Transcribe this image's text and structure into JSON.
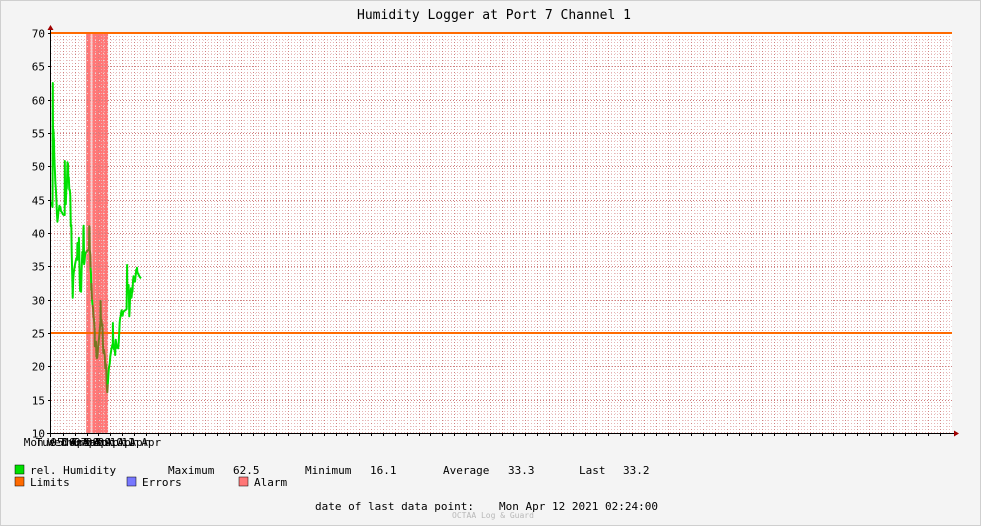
{
  "chart_data": {
    "type": "line",
    "title": "Humidity Logger at Port 7 Channel 1",
    "ylim": [
      10,
      70
    ],
    "y_ticks": [
      10,
      15,
      20,
      25,
      30,
      35,
      40,
      45,
      50,
      55,
      60,
      65,
      70
    ],
    "x_tick_labels": [
      "Mon 05 Apr",
      "Tue 06 Apr",
      "Wed 07 Apr",
      "Thu 08 Apr",
      "Fri 09 Apr",
      "Sat 10 Apr",
      "Sun 11 Apr"
    ],
    "x_range_hours": [
      0,
      170.4
    ],
    "grid": true,
    "limits": {
      "upper": 70,
      "lower": 25,
      "color": "#ff6a00"
    },
    "alarm_periods_hours": [
      [
        71.2,
        80.5
      ],
      [
        82.2,
        83.4
      ],
      [
        84.7,
        105.3
      ],
      [
        105.5,
        115.5
      ]
    ],
    "series": [
      {
        "name": "rel. Humidity",
        "color": "#00e000",
        "alarm_color": "#777722",
        "points": [
          [
            0,
            44.7
          ],
          [
            2.5,
            44.1
          ],
          [
            3.1,
            43.9
          ],
          [
            3.2,
            46
          ],
          [
            3.3,
            54
          ],
          [
            3.4,
            60
          ],
          [
            3.6,
            62.5
          ],
          [
            3.8,
            58
          ],
          [
            4,
            55.7
          ],
          [
            5,
            55.3
          ],
          [
            5.5,
            54.5
          ],
          [
            6,
            53.8
          ],
          [
            6.5,
            52
          ],
          [
            7.2,
            50.2
          ],
          [
            8,
            49
          ],
          [
            9,
            47.5
          ],
          [
            10,
            46.5
          ],
          [
            11,
            45
          ],
          [
            12,
            43
          ],
          [
            13,
            41.7
          ],
          [
            14,
            42.3
          ],
          [
            15,
            43.2
          ],
          [
            16,
            43.5
          ],
          [
            17,
            44.1
          ],
          [
            18,
            43.5
          ],
          [
            19,
            43.9
          ],
          [
            20,
            43.3
          ],
          [
            22,
            43.1
          ],
          [
            24,
            42.8
          ],
          [
            26,
            42.7
          ],
          [
            27.7,
            42.7
          ],
          [
            27.8,
            46
          ],
          [
            28,
            50.8
          ],
          [
            28.3,
            47.5
          ],
          [
            29,
            44.8
          ],
          [
            30,
            44.3
          ],
          [
            31,
            46.5
          ],
          [
            32,
            46.7
          ],
          [
            33,
            49.5
          ],
          [
            33.5,
            50.6
          ],
          [
            34,
            50.2
          ],
          [
            34.5,
            50.4
          ],
          [
            35,
            48.5
          ],
          [
            36,
            48.3
          ],
          [
            37,
            46.5
          ],
          [
            38,
            46.5
          ],
          [
            39,
            45.5
          ],
          [
            40,
            41
          ],
          [
            41,
            41.2
          ],
          [
            42,
            37
          ],
          [
            43,
            34
          ],
          [
            43.5,
            32
          ],
          [
            44,
            30.3
          ],
          [
            45,
            33
          ],
          [
            46,
            34
          ],
          [
            48,
            35
          ],
          [
            50,
            35.8
          ],
          [
            52,
            36.3
          ],
          [
            53,
            36.5
          ],
          [
            53.5,
            38.5
          ],
          [
            54,
            36
          ],
          [
            55,
            36.4
          ],
          [
            56,
            37.2
          ],
          [
            56.5,
            39.3
          ],
          [
            57,
            37.5
          ],
          [
            58,
            33
          ],
          [
            59,
            31.3
          ],
          [
            60,
            31.4
          ],
          [
            61,
            31.2
          ],
          [
            62,
            34.5
          ],
          [
            63,
            36.3
          ],
          [
            63.5,
            37.2
          ],
          [
            64,
            35.6
          ],
          [
            65,
            36.3
          ],
          [
            65.5,
            40.5
          ],
          [
            66,
            41.1
          ],
          [
            66.5,
            38
          ],
          [
            67,
            35.3
          ],
          [
            68,
            35.8
          ],
          [
            69,
            36.8
          ],
          [
            71,
            37.2
          ],
          [
            73,
            37.3
          ],
          [
            75,
            37.4
          ],
          [
            76,
            37.5
          ],
          [
            77,
            37.5
          ],
          [
            77.5,
            41
          ],
          [
            78,
            40.9
          ],
          [
            78.5,
            37.5
          ],
          [
            79.5,
            36.7
          ],
          [
            80,
            34.8
          ],
          [
            81,
            33.8
          ],
          [
            81.5,
            31.5
          ],
          [
            82,
            32.5
          ],
          [
            83,
            30
          ],
          [
            84,
            29.2
          ],
          [
            85,
            28.8
          ],
          [
            86,
            27.5
          ],
          [
            87,
            27
          ],
          [
            88,
            25.9
          ],
          [
            88.5,
            25.3
          ],
          [
            88.6,
            23
          ],
          [
            89,
            23.7
          ],
          [
            90,
            23.5
          ],
          [
            91,
            23.7
          ],
          [
            92,
            21.5
          ],
          [
            93,
            21.2
          ],
          [
            94,
            21.5
          ],
          [
            95,
            22.5
          ],
          [
            97,
            24
          ],
          [
            99,
            25.7
          ],
          [
            100,
            26.6
          ],
          [
            100.5,
            29.8
          ],
          [
            101,
            26.5
          ],
          [
            102,
            27
          ],
          [
            103,
            26.1
          ],
          [
            104,
            26.3
          ],
          [
            105,
            23.4
          ],
          [
            106,
            22
          ],
          [
            107,
            22.5
          ],
          [
            108,
            22
          ],
          [
            109,
            21.5
          ],
          [
            110,
            19.7
          ],
          [
            111,
            20.3
          ],
          [
            112,
            19.5
          ],
          [
            113,
            17
          ],
          [
            114,
            16.1
          ],
          [
            115,
            17.3
          ],
          [
            116,
            18.5
          ],
          [
            117,
            19.6
          ],
          [
            119,
            20.5
          ],
          [
            120,
            21.5
          ],
          [
            122,
            22.5
          ],
          [
            124,
            23.2
          ],
          [
            125,
            23.4
          ],
          [
            125.3,
            26.5
          ],
          [
            126,
            24
          ],
          [
            127,
            22.7
          ],
          [
            128,
            22.5
          ],
          [
            129,
            22.6
          ],
          [
            130,
            21.7
          ],
          [
            131,
            24
          ],
          [
            132,
            23.5
          ],
          [
            133,
            22.8
          ],
          [
            134,
            23.1
          ],
          [
            135,
            22.9
          ],
          [
            136,
            22.7
          ],
          [
            137,
            23.6
          ],
          [
            138,
            25
          ],
          [
            139,
            26.6
          ],
          [
            140,
            27.3
          ],
          [
            141,
            27.5
          ],
          [
            142,
            28
          ],
          [
            143,
            28.4
          ],
          [
            144,
            28
          ],
          [
            145,
            27.6
          ],
          [
            146,
            28.1
          ],
          [
            148,
            28.3
          ],
          [
            150,
            28.4
          ],
          [
            152,
            28.5
          ],
          [
            153,
            28.6
          ],
          [
            153.5,
            31
          ],
          [
            154,
            35.2
          ],
          [
            154.5,
            32
          ],
          [
            155,
            31.3
          ],
          [
            156,
            31.5
          ],
          [
            157,
            32.2
          ],
          [
            158,
            29.3
          ],
          [
            158.5,
            27.5
          ],
          [
            159,
            28
          ],
          [
            160,
            30
          ],
          [
            161,
            31
          ],
          [
            162,
            31.7
          ],
          [
            163,
            30.3
          ],
          [
            164,
            31.1
          ],
          [
            165,
            31.2
          ],
          [
            166,
            32.8
          ],
          [
            167,
            33.5
          ],
          [
            168,
            32.8
          ],
          [
            169,
            33.1
          ],
          [
            170,
            32.7
          ],
          [
            171,
            33.5
          ],
          [
            172,
            34
          ],
          [
            172.5,
            34.5
          ],
          [
            173,
            34
          ],
          [
            174,
            34.8
          ],
          [
            175,
            34.1
          ],
          [
            177,
            33.8
          ],
          [
            179,
            33.5
          ],
          [
            181,
            33.3
          ],
          [
            182.4,
            33.2
          ]
        ]
      },
      {
        "name": "Limits",
        "color": "#ff6a00"
      },
      {
        "name": "Errors",
        "color": "#7777ff"
      },
      {
        "name": "Alarm",
        "color": "#ff7777"
      }
    ],
    "stats": {
      "maximum_label": "Maximum",
      "maximum": "62.5",
      "minimum_label": "Minimum",
      "minimum": "16.1",
      "average_label": "Average",
      "average": "33.3",
      "last_label": "Last",
      "last": "33.2"
    },
    "last_data_point_label": "date of last data point:",
    "last_data_point": "Mon Apr 12 2021 02:24:00",
    "watermark": "OCTAA Log & Guard"
  }
}
